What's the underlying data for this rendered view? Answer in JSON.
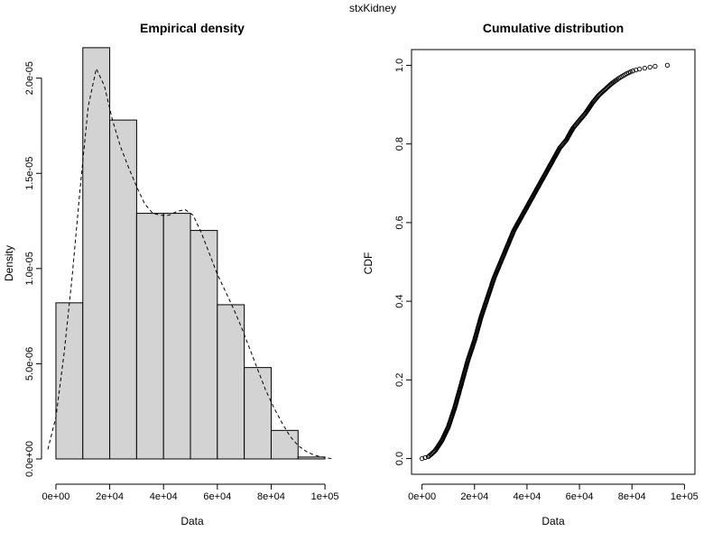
{
  "figure_title": "stxKidney",
  "chart_data": [
    {
      "type": "bar",
      "title": "Empirical density",
      "xlabel": "Data",
      "ylabel": "Density",
      "xlim": [
        -2000,
        104000
      ],
      "ylim": [
        0,
        2.15e-05
      ],
      "x_ticks": [
        0,
        20000,
        40000,
        60000,
        80000,
        100000
      ],
      "x_tick_labels": [
        "0e+00",
        "2e+04",
        "4e+04",
        "6e+04",
        "8e+04",
        "1e+05"
      ],
      "y_ticks": [
        0,
        5e-06,
        1e-05,
        1.5e-05,
        2e-05
      ],
      "y_tick_labels": [
        "0.0e+00",
        "5.0e-06",
        "1.0e-05",
        "1.5e-05",
        "2.0e-05"
      ],
      "bin_edges": [
        0,
        10000,
        20000,
        30000,
        40000,
        50000,
        60000,
        70000,
        80000,
        90000,
        100000
      ],
      "values": [
        8.2e-06,
        2.16e-05,
        1.78e-05,
        1.29e-05,
        1.29e-05,
        1.2e-05,
        8.1e-06,
        4.8e-06,
        1.5e-06,
        1e-07
      ],
      "bar_color": "#d3d3d3",
      "density_curve": {
        "x": [
          -3000,
          0,
          3000,
          6000,
          9000,
          12000,
          15000,
          18000,
          21000,
          24000,
          27000,
          30000,
          33000,
          36000,
          39000,
          42000,
          45000,
          48000,
          51000,
          54000,
          57000,
          60000,
          63000,
          66000,
          69000,
          72000,
          75000,
          78000,
          81000,
          84000,
          87000,
          90000,
          93000,
          96000,
          99000,
          103000
        ],
        "y": [
          5e-07,
          2.2e-06,
          5.5e-06,
          9.5e-06,
          1.42e-05,
          1.85e-05,
          2.05e-05,
          1.96e-05,
          1.78e-05,
          1.64e-05,
          1.53e-05,
          1.43e-05,
          1.34e-05,
          1.29e-05,
          1.28e-05,
          1.28e-05,
          1.3e-05,
          1.31e-05,
          1.28e-05,
          1.19e-05,
          1.08e-05,
          9.7e-06,
          8.8e-06,
          7.9e-06,
          6.9e-06,
          5.8e-06,
          4.7e-06,
          3.6e-06,
          2.7e-06,
          1.9e-06,
          1.2e-06,
          7e-07,
          4e-07,
          2e-07,
          1e-07,
          0
        ]
      }
    },
    {
      "type": "scatter",
      "title": "Cumulative distribution",
      "xlabel": "Data",
      "ylabel": "CDF",
      "xlim": [
        -4000,
        104000
      ],
      "ylim": [
        -0.04,
        1.04
      ],
      "x_ticks": [
        0,
        20000,
        40000,
        60000,
        80000,
        100000
      ],
      "x_tick_labels": [
        "0e+00",
        "2e+04",
        "4e+04",
        "6e+04",
        "8e+04",
        "1e+05"
      ],
      "y_ticks": [
        0,
        0.2,
        0.4,
        0.6,
        0.8,
        1.0
      ],
      "y_tick_labels": [
        "0.0",
        "0.2",
        "0.4",
        "0.6",
        "0.8",
        "1.0"
      ],
      "marker": "open-circle",
      "ecdf_knots": {
        "x": [
          0,
          2500,
          5000,
          7500,
          10000,
          12500,
          15000,
          17500,
          20000,
          22500,
          25000,
          27500,
          30000,
          32500,
          35000,
          37500,
          40000,
          42500,
          45000,
          47500,
          50000,
          52500,
          55000,
          57500,
          60000,
          62500,
          65000,
          67500,
          70000,
          72500,
          75000,
          77500,
          80000,
          82500,
          85000,
          87500,
          90000,
          93500
        ],
        "y": [
          0,
          0.005,
          0.02,
          0.045,
          0.08,
          0.13,
          0.19,
          0.25,
          0.3,
          0.36,
          0.41,
          0.46,
          0.5,
          0.54,
          0.58,
          0.61,
          0.64,
          0.67,
          0.7,
          0.73,
          0.76,
          0.79,
          0.81,
          0.84,
          0.86,
          0.88,
          0.905,
          0.925,
          0.94,
          0.955,
          0.967,
          0.977,
          0.985,
          0.99,
          0.993,
          0.996,
          0.999,
          1.0
        ]
      },
      "n_points": 420
    }
  ]
}
